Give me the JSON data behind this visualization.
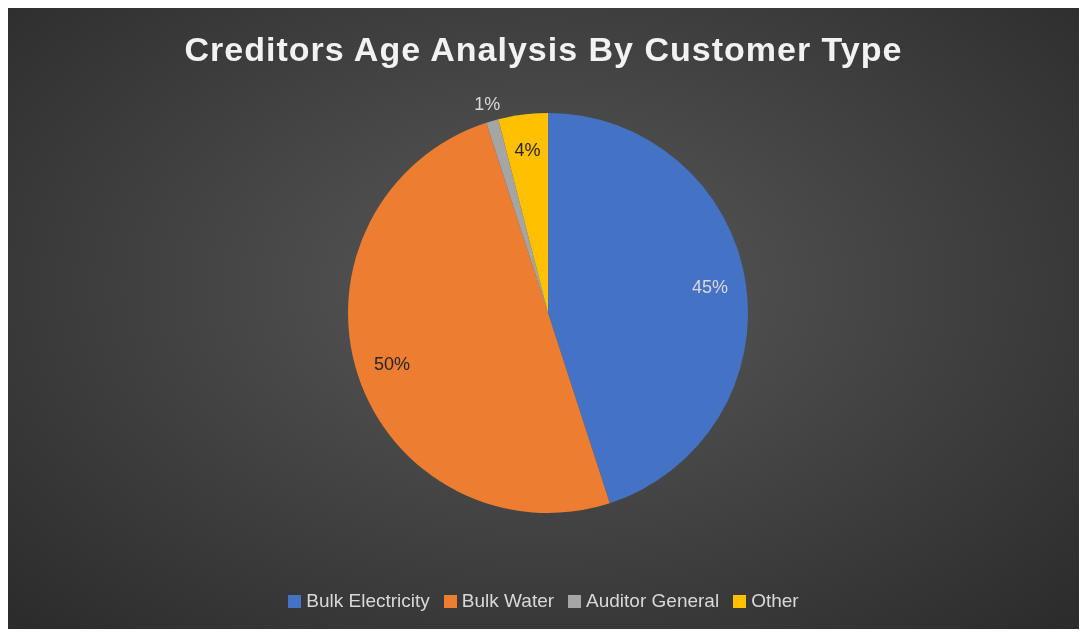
{
  "chart_data": {
    "type": "pie",
    "title": "Creditors Age Analysis By Customer Type",
    "categories": [
      "Bulk Electricity",
      "Bulk Water",
      "Auditor General",
      "Other"
    ],
    "values": [
      45,
      50,
      1,
      4
    ],
    "colors": [
      "#4472c4",
      "#ed7d31",
      "#a5a5a5",
      "#ffc000"
    ],
    "value_labels": [
      "45%",
      "50%",
      "1%",
      "4%"
    ],
    "legend": "bottom"
  }
}
